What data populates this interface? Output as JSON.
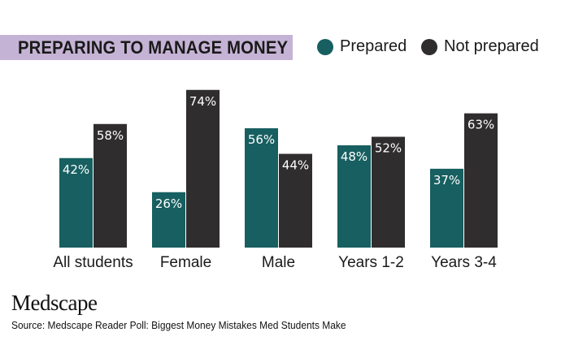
{
  "chart_data": {
    "type": "bar",
    "title": "PREPARING TO MANAGE MONEY",
    "categories": [
      "All students",
      "Female",
      "Male",
      "Years 1-2",
      "Years 3-4"
    ],
    "series": [
      {
        "name": "Prepared",
        "values": [
          42,
          26,
          56,
          48,
          37
        ],
        "color": "#175f60"
      },
      {
        "name": "Not prepared",
        "values": [
          58,
          74,
          44,
          52,
          63
        ],
        "color": "#2f2d2e"
      }
    ],
    "value_suffix": "%",
    "ylim": [
      0,
      80
    ],
    "grid": false,
    "legend_position": "top-right"
  },
  "branding": {
    "logo_text": "Medscape",
    "source": "Source: Medscape Reader Poll: Biggest Money Mistakes Med Students Make"
  }
}
